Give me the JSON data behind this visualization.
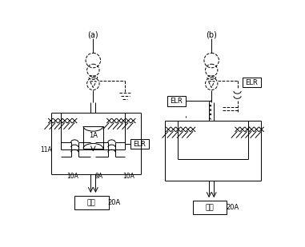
{
  "bg_color": "#ffffff",
  "line_color": "#000000",
  "dashed_color": "#000000",
  "label_a": "(a)",
  "label_b": "(b)",
  "elr_label": "ELR",
  "load_label": "負荷",
  "current_20A": "20A",
  "current_11A": "11A",
  "current_10A_left": "10A",
  "current_9A": "9A",
  "current_10A_right": "10A",
  "current_1A": "1A"
}
